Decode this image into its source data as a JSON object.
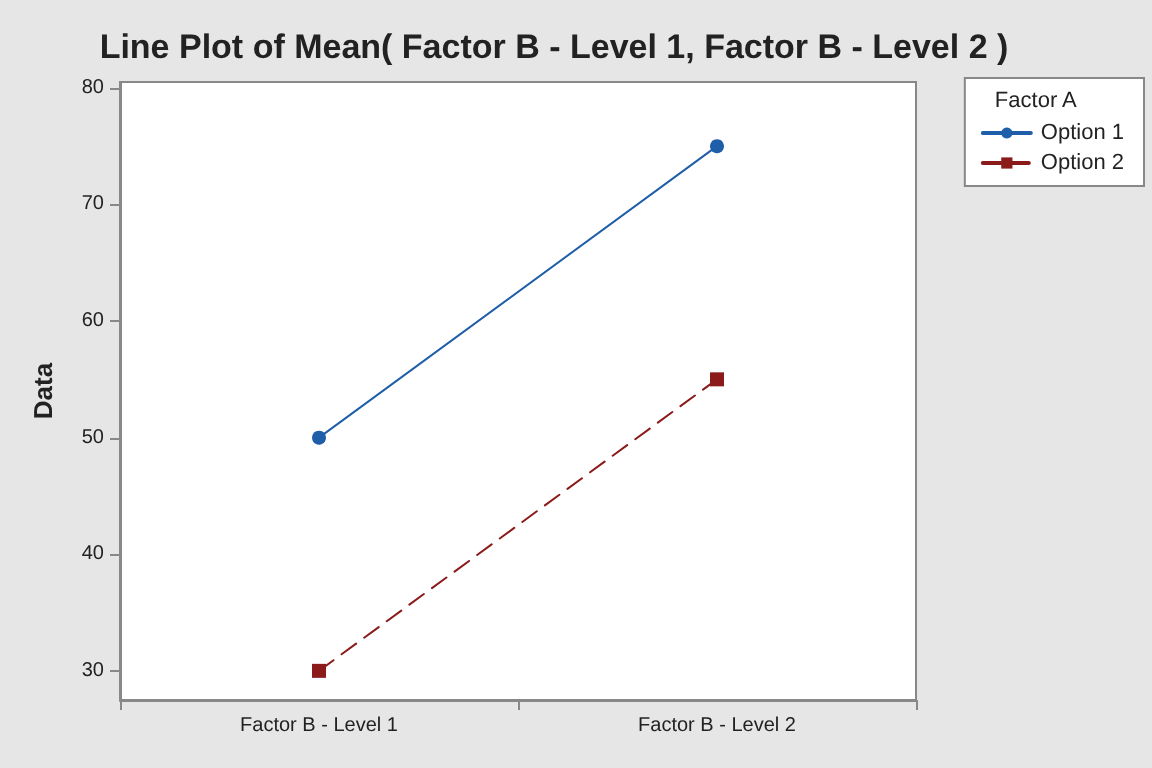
{
  "chart_data": {
    "type": "line",
    "title": "Line Plot of Mean( Factor B - Level 1, Factor B - Level 2 )",
    "ylabel": "Data",
    "legend_title": "Factor A",
    "categories": [
      "Factor B - Level 1",
      "Factor B - Level 2"
    ],
    "series": [
      {
        "name": "Option 1",
        "color": "#1f5ea8",
        "values": [
          50,
          75
        ],
        "marker": "circle",
        "line_style": "solid"
      },
      {
        "name": "Option 2",
        "color": "#8b1a1a",
        "values": [
          30,
          55
        ],
        "marker": "square",
        "line_style": "dashed"
      }
    ],
    "ylim": [
      27.5,
      80.5
    ],
    "yticks": [
      30,
      40,
      50,
      60,
      70,
      80
    ],
    "grid": false,
    "legend": "top right"
  }
}
